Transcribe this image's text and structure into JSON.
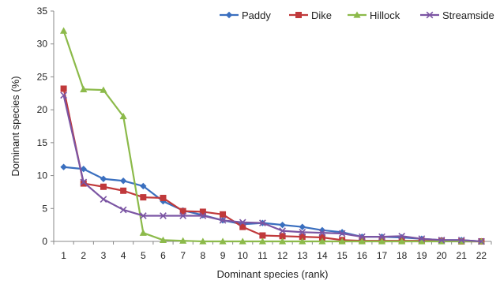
{
  "chart_data": {
    "type": "line",
    "xlabel": "Dominant species (rank)",
    "ylabel": "Dominant species (%)",
    "x": [
      1,
      2,
      3,
      4,
      5,
      6,
      7,
      8,
      9,
      10,
      11,
      12,
      13,
      14,
      15,
      16,
      17,
      18,
      19,
      20,
      21,
      22
    ],
    "ylim": [
      0,
      35
    ],
    "yticks": [
      0,
      5,
      10,
      15,
      20,
      25,
      30,
      35
    ],
    "grid": false,
    "legend_position": "top-right",
    "series": [
      {
        "name": "Paddy",
        "color": "#3a6fbf",
        "marker": "diamond",
        "values": [
          11.3,
          11.0,
          9.5,
          9.2,
          8.4,
          6.1,
          4.7,
          4.0,
          3.2,
          2.6,
          2.8,
          2.5,
          2.2,
          1.7,
          1.4,
          0.7,
          0.7,
          0.6,
          0.4,
          0.2,
          0.2,
          0.0
        ]
      },
      {
        "name": "Dike",
        "color": "#c0393b",
        "marker": "square",
        "values": [
          23.2,
          8.8,
          8.3,
          7.7,
          6.7,
          6.6,
          4.6,
          4.5,
          4.1,
          2.2,
          0.9,
          0.8,
          0.7,
          0.6,
          0.2,
          0.1,
          0.1,
          0.1,
          0.1,
          0.1,
          0.0,
          0.0
        ]
      },
      {
        "name": "Hillock",
        "color": "#8cba4a",
        "marker": "triangle",
        "values": [
          32.0,
          23.1,
          23.0,
          19.0,
          1.3,
          0.2,
          0.1,
          0.0,
          0.0,
          0.0,
          0.0,
          0.0,
          0.0,
          0.0,
          0.0,
          0.0,
          0.0,
          0.0,
          0.0,
          0.0,
          0.0,
          0.0
        ]
      },
      {
        "name": "Streamside",
        "color": "#7b55a3",
        "marker": "x",
        "values": [
          22.2,
          9.0,
          6.4,
          4.8,
          3.9,
          3.9,
          3.9,
          3.9,
          3.2,
          2.9,
          2.8,
          1.6,
          1.4,
          1.3,
          1.2,
          0.7,
          0.7,
          0.8,
          0.4,
          0.2,
          0.2,
          0.0
        ]
      }
    ]
  }
}
